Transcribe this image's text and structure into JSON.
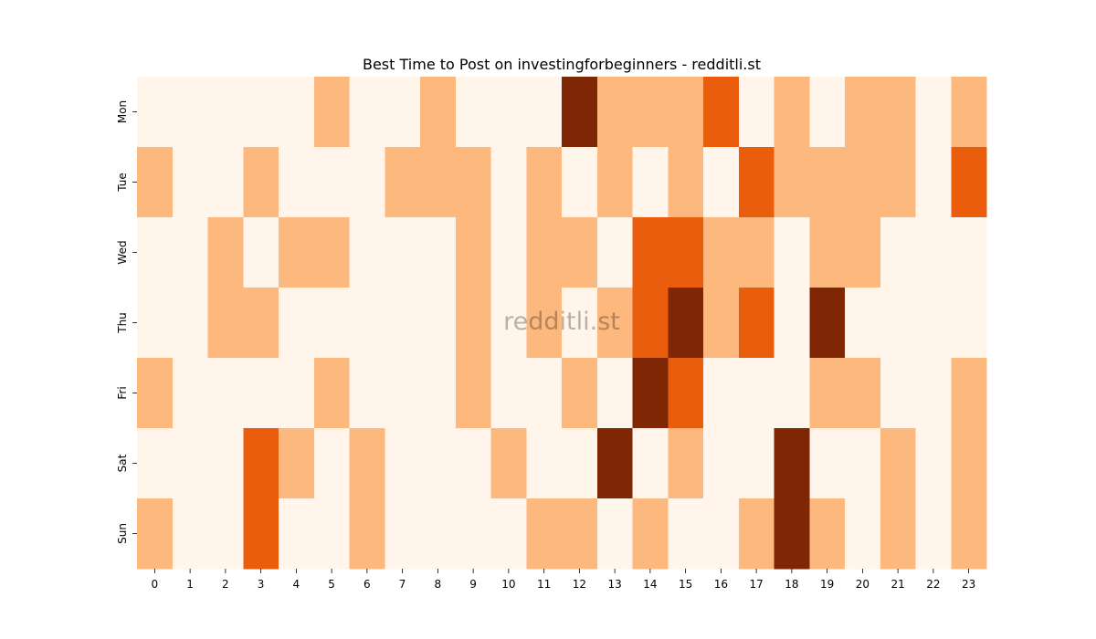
{
  "chart_data": {
    "type": "heatmap",
    "title": "Best Time to Post on investingforbeginners - redditli.st",
    "xlabel": "",
    "ylabel": "",
    "x_categories": [
      "0",
      "1",
      "2",
      "3",
      "4",
      "5",
      "6",
      "7",
      "8",
      "9",
      "10",
      "11",
      "12",
      "13",
      "14",
      "15",
      "16",
      "17",
      "18",
      "19",
      "20",
      "21",
      "22",
      "23"
    ],
    "y_categories": [
      "Mon",
      "Tue",
      "Wed",
      "Thu",
      "Fri",
      "Sat",
      "Sun"
    ],
    "values": [
      [
        0,
        0,
        0,
        0,
        0,
        1,
        0,
        0,
        1,
        0,
        0,
        0,
        3,
        1,
        1,
        1,
        2,
        0,
        1,
        0,
        1,
        1,
        0,
        1
      ],
      [
        1,
        0,
        0,
        1,
        0,
        0,
        0,
        1,
        1,
        1,
        0,
        1,
        0,
        1,
        0,
        1,
        0,
        2,
        1,
        1,
        1,
        1,
        0,
        2
      ],
      [
        0,
        0,
        1,
        0,
        1,
        1,
        0,
        0,
        0,
        1,
        0,
        1,
        1,
        0,
        2,
        2,
        1,
        1,
        0,
        1,
        1,
        0,
        0,
        0
      ],
      [
        0,
        0,
        1,
        1,
        0,
        0,
        0,
        0,
        0,
        1,
        0,
        1,
        0,
        1,
        2,
        3,
        1,
        2,
        0,
        3,
        0,
        0,
        0,
        0
      ],
      [
        1,
        0,
        0,
        0,
        0,
        1,
        0,
        0,
        0,
        1,
        0,
        0,
        1,
        0,
        3,
        2,
        0,
        0,
        0,
        1,
        1,
        0,
        0,
        1
      ],
      [
        0,
        0,
        0,
        2,
        1,
        0,
        1,
        0,
        0,
        0,
        1,
        0,
        0,
        3,
        0,
        1,
        0,
        0,
        3,
        0,
        0,
        1,
        0,
        1
      ],
      [
        1,
        0,
        0,
        2,
        0,
        0,
        1,
        0,
        0,
        0,
        0,
        1,
        1,
        0,
        1,
        0,
        0,
        1,
        3,
        1,
        0,
        1,
        0,
        1
      ]
    ],
    "color_scale": [
      "#fff5eb",
      "#fdb87d",
      "#e95d0d",
      "#7f2704"
    ],
    "colorbar": false,
    "grid": false,
    "watermark": "redditli.st"
  }
}
